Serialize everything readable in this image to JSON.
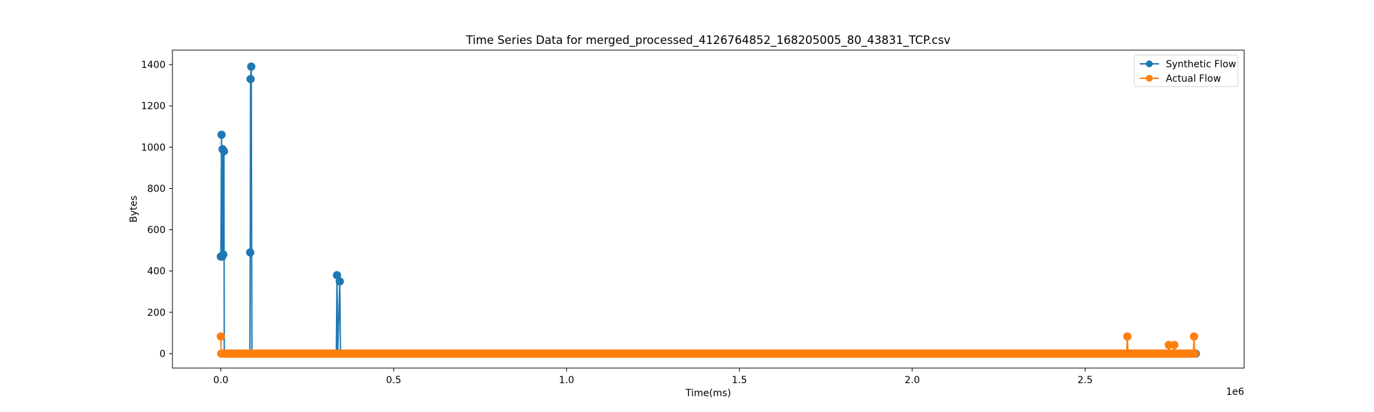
{
  "chart_data": {
    "type": "line",
    "title": "Time Series Data for merged_processed_4126764852_168205005_80_43831_TCP.csv",
    "xlabel": "Time(ms)",
    "ylabel": "Bytes",
    "x_offset_text": "1e6",
    "xlim": [
      -140000,
      2960000
    ],
    "ylim": [
      -70,
      1470
    ],
    "x_ticks": [
      0,
      500000,
      1000000,
      1500000,
      2000000,
      2500000
    ],
    "x_tick_labels": [
      "0.0",
      "0.5",
      "1.0",
      "1.5",
      "2.0",
      "2.5"
    ],
    "y_ticks": [
      0,
      200,
      400,
      600,
      800,
      1000,
      1200,
      1400
    ],
    "y_tick_labels": [
      "0",
      "200",
      "400",
      "600",
      "800",
      "1000",
      "1200",
      "1400"
    ],
    "grid": false,
    "legend_position": "top-right",
    "series": [
      {
        "name": "Synthetic Flow",
        "color": "#1f77b4",
        "marker": "circle",
        "points": [
          [
            0,
            470
          ],
          [
            2000,
            1060
          ],
          [
            4000,
            470
          ],
          [
            5000,
            990
          ],
          [
            7000,
            480
          ],
          [
            9000,
            980
          ],
          [
            10000,
            0
          ],
          [
            84000,
            0
          ],
          [
            85000,
            490
          ],
          [
            86000,
            1330
          ],
          [
            88000,
            1390
          ],
          [
            90000,
            0
          ],
          [
            334000,
            0
          ],
          [
            336000,
            380
          ],
          [
            338000,
            0
          ],
          [
            344000,
            350
          ],
          [
            346000,
            0
          ],
          [
            2820000,
            0
          ]
        ]
      },
      {
        "name": "Actual Flow",
        "color": "#ff7f0e",
        "marker": "circle",
        "points": [
          [
            0,
            83
          ],
          [
            1000,
            0
          ],
          [
            2620000,
            0
          ],
          [
            2622000,
            83
          ],
          [
            2624000,
            0
          ],
          [
            2740000,
            0
          ],
          [
            2742000,
            42
          ],
          [
            2744000,
            0
          ],
          [
            2756000,
            0
          ],
          [
            2758000,
            42
          ],
          [
            2760000,
            0
          ],
          [
            2813000,
            0
          ],
          [
            2815000,
            83
          ],
          [
            2817000,
            0
          ]
        ],
        "baseline_from": 0,
        "baseline_to": 2820000,
        "baseline_value": 0
      }
    ]
  }
}
